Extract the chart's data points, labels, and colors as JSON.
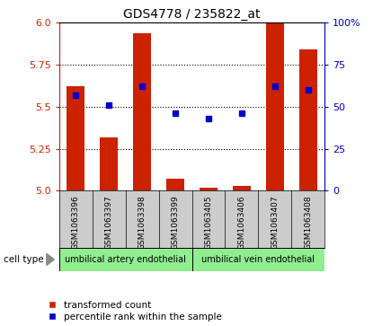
{
  "title": "GDS4778 / 235822_at",
  "samples": [
    "GSM1063396",
    "GSM1063397",
    "GSM1063398",
    "GSM1063399",
    "GSM1063405",
    "GSM1063406",
    "GSM1063407",
    "GSM1063408"
  ],
  "transformed_count": [
    5.62,
    5.32,
    5.94,
    5.07,
    5.02,
    5.03,
    6.0,
    5.84
  ],
  "percentile_rank": [
    57,
    51,
    62,
    46,
    43,
    46,
    62,
    60
  ],
  "ylim_left": [
    5.0,
    6.0
  ],
  "ylim_right": [
    0,
    100
  ],
  "yticks_left": [
    5.0,
    5.25,
    5.5,
    5.75,
    6.0
  ],
  "yticks_right": [
    0,
    25,
    50,
    75,
    100
  ],
  "cell_groups": [
    {
      "label": "umbilical artery endothelial",
      "samples": [
        0,
        1,
        2,
        3
      ],
      "color": "#90EE90"
    },
    {
      "label": "umbilical vein endothelial",
      "samples": [
        4,
        5,
        6,
        7
      ],
      "color": "#90EE90"
    }
  ],
  "bar_color": "#CC2200",
  "dot_color": "#0000CC",
  "background_color": "#ffffff",
  "tick_area_color": "#cccccc",
  "left_axis_color": "#CC2200",
  "right_axis_color": "#0000BB",
  "grid_color": "#000000",
  "legend_items": [
    "transformed count",
    "percentile rank within the sample"
  ]
}
